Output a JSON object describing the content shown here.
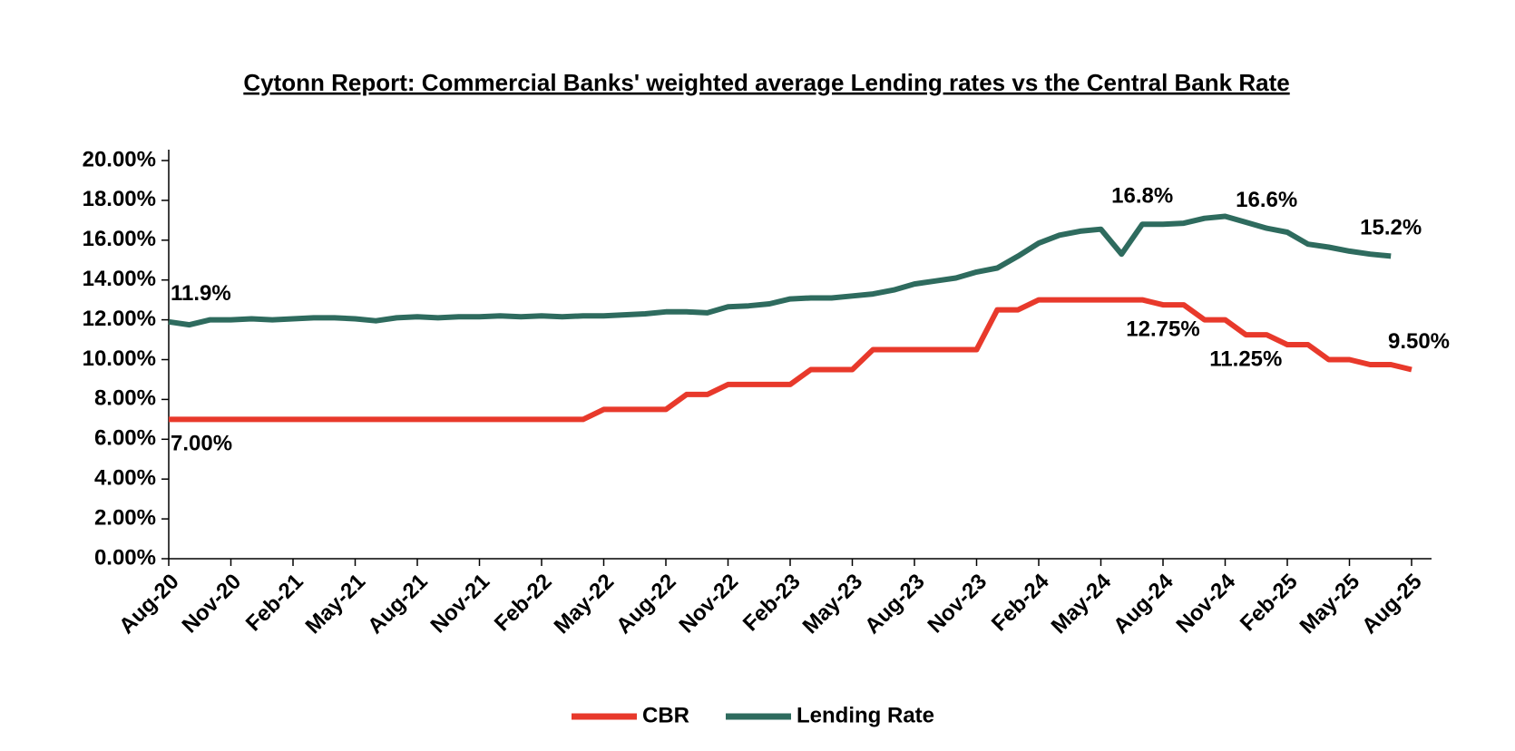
{
  "chart_data": {
    "type": "line",
    "title": "Cytonn Report: Commercial Banks' weighted average Lending rates vs the Central Bank Rate",
    "categories": [
      "Aug-20",
      null,
      null,
      "Nov-20",
      null,
      null,
      "Feb-21",
      null,
      null,
      "May-21",
      null,
      null,
      "Aug-21",
      null,
      null,
      "Nov-21",
      null,
      null,
      "Feb-22",
      null,
      null,
      "May-22",
      null,
      null,
      "Aug-22",
      null,
      null,
      "Nov-22",
      null,
      null,
      "Feb-23",
      null,
      null,
      "May-23",
      null,
      null,
      "Aug-23",
      null,
      null,
      "Nov-23",
      null,
      null,
      "Feb-24",
      null,
      null,
      "May-24",
      null,
      null,
      "Aug-24",
      null,
      null,
      "Nov-24",
      null,
      null,
      "Feb-25",
      null,
      null,
      "May-25",
      null,
      null,
      "Aug-25"
    ],
    "series": [
      {
        "name": "CBR",
        "color": "#e8392b",
        "values": [
          7,
          7,
          7,
          7,
          7,
          7,
          7,
          7,
          7,
          7,
          7,
          7,
          7,
          7,
          7,
          7,
          7,
          7,
          7,
          7,
          7,
          7.5,
          7.5,
          7.5,
          7.5,
          8.25,
          8.25,
          8.75,
          8.75,
          8.75,
          8.75,
          9.5,
          9.5,
          9.5,
          10.5,
          10.5,
          10.5,
          10.5,
          10.5,
          10.5,
          12.5,
          12.5,
          13,
          13,
          13,
          13,
          13,
          13,
          12.75,
          12.75,
          12,
          12,
          11.25,
          11.25,
          10.75,
          10.75,
          10,
          10,
          9.75,
          9.75,
          9.5
        ],
        "value_labels": [
          "7.00%",
          null,
          null,
          null,
          null,
          null,
          null,
          null,
          null,
          null,
          null,
          null,
          null,
          null,
          null,
          null,
          null,
          null,
          null,
          null,
          null,
          null,
          null,
          null,
          null,
          null,
          null,
          null,
          null,
          null,
          null,
          null,
          null,
          null,
          null,
          null,
          null,
          null,
          null,
          null,
          null,
          null,
          null,
          null,
          null,
          null,
          null,
          null,
          "12.75%",
          null,
          null,
          null,
          "11.25%",
          null,
          null,
          null,
          null,
          null,
          null,
          null,
          "9.50%"
        ]
      },
      {
        "name": "Lending Rate",
        "color": "#2e6b5e",
        "values": [
          11.9,
          11.75,
          12,
          12,
          12.05,
          12,
          12.05,
          12.1,
          12.1,
          12.05,
          11.95,
          12.1,
          12.15,
          12.1,
          12.15,
          12.15,
          12.2,
          12.15,
          12.2,
          12.15,
          12.2,
          12.2,
          12.25,
          12.3,
          12.4,
          12.4,
          12.35,
          12.65,
          12.7,
          12.8,
          13.05,
          13.1,
          13.1,
          13.2,
          13.3,
          13.5,
          13.8,
          13.95,
          14.1,
          14.4,
          14.6,
          15.2,
          15.85,
          16.25,
          16.45,
          16.55,
          15.3,
          16.8,
          16.8,
          16.85,
          17.1,
          17.2,
          16.9,
          16.6,
          16.4,
          15.8,
          15.65,
          15.45,
          15.3,
          15.2,
          null
        ],
        "value_labels": [
          "11.9%",
          null,
          null,
          null,
          null,
          null,
          null,
          null,
          null,
          null,
          null,
          null,
          null,
          null,
          null,
          null,
          null,
          null,
          null,
          null,
          null,
          null,
          null,
          null,
          null,
          null,
          null,
          null,
          null,
          null,
          null,
          null,
          null,
          null,
          null,
          null,
          null,
          null,
          null,
          null,
          null,
          null,
          null,
          null,
          null,
          null,
          null,
          "16.8%",
          null,
          null,
          null,
          null,
          null,
          "16.6%",
          null,
          null,
          null,
          null,
          null,
          "15.2%",
          null
        ]
      }
    ],
    "ylim": [
      0,
      20
    ],
    "yticks": [
      {
        "value": 0,
        "label": "0.00%"
      },
      {
        "value": 2,
        "label": "2.00%"
      },
      {
        "value": 4,
        "label": "4.00%"
      },
      {
        "value": 6,
        "label": "6.00%"
      },
      {
        "value": 8,
        "label": "8.00%"
      },
      {
        "value": 10,
        "label": "10.00%"
      },
      {
        "value": 12,
        "label": "12.00%"
      },
      {
        "value": 14,
        "label": "14.00%"
      },
      {
        "value": 16,
        "label": "16.00%"
      },
      {
        "value": 18,
        "label": "18.00%"
      },
      {
        "value": 20,
        "label": "20.00%"
      }
    ],
    "grid": false,
    "legend": "bottom"
  }
}
